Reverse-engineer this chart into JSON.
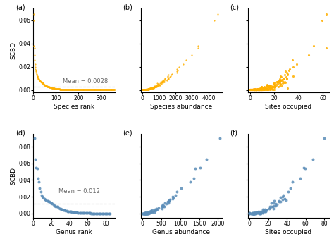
{
  "orange_color": "#FFB000",
  "blue_color": "#5B8DB8",
  "mean_line_color": "#999999",
  "background_color": "#ffffff",
  "panel_labels": [
    "(a)",
    "(b)",
    "(c)",
    "(d)",
    "(e)",
    "(f)"
  ],
  "sp_mean": 0.0028,
  "sp_mean_label": "Mean = 0.0028",
  "gen_mean": 0.012,
  "gen_mean_label": "Mean = 0.012",
  "sp_n": 360,
  "gen_n": 85,
  "sp_xlim_rank": [
    0,
    360
  ],
  "sp_xlim_abund": [
    -100,
    4800
  ],
  "sp_xlim_sites": [
    -2,
    65
  ],
  "sp_ylim": [
    -0.002,
    0.07
  ],
  "sp_yticks": [
    0.0,
    0.02,
    0.04,
    0.06
  ],
  "sp_xticks_abund": [
    0,
    1000,
    2000,
    3000,
    4000
  ],
  "sp_xticks_sites": [
    0,
    20,
    40,
    60
  ],
  "gen_xlim_rank": [
    0,
    90
  ],
  "gen_xlim_abund": [
    -50,
    2100
  ],
  "gen_xlim_sites": [
    -2,
    85
  ],
  "gen_ylim": [
    -0.005,
    0.095
  ],
  "gen_yticks": [
    0.0,
    0.02,
    0.04,
    0.06,
    0.08
  ],
  "gen_xticks_abund": [
    0,
    500,
    1000,
    1500,
    2000
  ],
  "gen_xticks_rank": [
    0,
    20,
    40,
    60,
    80
  ],
  "gen_xticks_sites": [
    0,
    20,
    40,
    60,
    80
  ]
}
